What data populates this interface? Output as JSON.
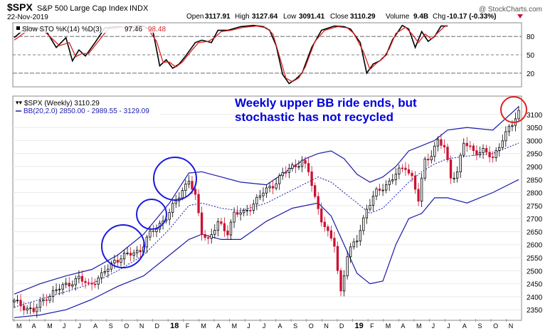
{
  "header": {
    "symbol": "$SPX",
    "name": "S&P 500 Large Cap Index",
    "exchange": "INDX",
    "date": "22-Nov-2019",
    "open_label": "Open",
    "open": "3117.91",
    "high_label": "High",
    "high": "3127.64",
    "low_label": "Low",
    "low": "3091.41",
    "close_label": "Close",
    "close": "3110.29",
    "volume_label": "Volume",
    "volume": "9.4B",
    "chg_label": "Chg",
    "chg": "-10.17 (-0.33%)",
    "watermark": "@ StockCharts.com"
  },
  "stoch_panel": {
    "legend_name": "Slow STO %K(14) %D(3)",
    "k_value": "97.46",
    "d_value": "98.48",
    "ticks": [
      20,
      50,
      80
    ],
    "ylim": [
      0,
      100
    ]
  },
  "price_panel": {
    "legend_price": "$SPX (Weekly) 3110.29",
    "legend_bb": "BB(20,2.0) 2850.00 - 2989.55 - 3129.09",
    "ticks": [
      2350,
      2400,
      2450,
      2500,
      2550,
      2600,
      2650,
      2700,
      2750,
      2800,
      2850,
      2900,
      2950,
      3000,
      3050,
      3100
    ],
    "ylim": [
      2315,
      3165
    ]
  },
  "annotation": {
    "line1": "Weekly upper BB ride ends, but",
    "line2": "stochastic has not recycled"
  },
  "x_labels": [
    "M",
    "A",
    "M",
    "J",
    "J",
    "A",
    "S",
    "O",
    "N",
    "D",
    "18",
    "F",
    "M",
    "A",
    "M",
    "J",
    "J",
    "A",
    "S",
    "O",
    "N",
    "D",
    "19",
    "F",
    "M",
    "A",
    "M",
    "J",
    "J",
    "A",
    "S",
    "O",
    "N"
  ],
  "colors": {
    "up": "#000000",
    "down": "#cc1133",
    "k_line": "#000000",
    "d_line": "#dd2222",
    "bb_band": "#1a1aaa",
    "bb_mid": "#1a1aaa",
    "annotation": "#0000dd",
    "circle_blue": "#1a1add",
    "circle_red": "#dd2222"
  },
  "chart_data": [
    {
      "type": "line",
      "x_unit": "week index (0 = first week of Mar 2017)",
      "series": [
        {
          "name": "%K(14)",
          "points": [
            [
              0,
              78
            ],
            [
              4,
              96
            ],
            [
              8,
              92
            ],
            [
              10,
              88
            ],
            [
              13,
              62
            ],
            [
              16,
              78
            ],
            [
              18,
              40
            ],
            [
              20,
              58
            ],
            [
              22,
              48
            ],
            [
              25,
              70
            ],
            [
              28,
              94
            ],
            [
              32,
              96
            ],
            [
              36,
              94
            ],
            [
              38,
              98
            ],
            [
              40,
              97
            ],
            [
              43,
              86
            ],
            [
              45,
              32
            ],
            [
              47,
              42
            ],
            [
              49,
              28
            ],
            [
              51,
              35
            ],
            [
              53,
              48
            ],
            [
              56,
              70
            ],
            [
              58,
              74
            ],
            [
              61,
              70
            ],
            [
              63,
              90
            ],
            [
              66,
              90
            ],
            [
              70,
              96
            ],
            [
              74,
              98
            ],
            [
              77,
              96
            ],
            [
              79,
              90
            ],
            [
              81,
              65
            ],
            [
              83,
              18
            ],
            [
              85,
              3
            ],
            [
              87,
              10
            ],
            [
              89,
              20
            ],
            [
              92,
              62
            ],
            [
              95,
              90
            ],
            [
              99,
              97
            ],
            [
              102,
              96
            ],
            [
              104,
              92
            ],
            [
              107,
              70
            ],
            [
              109,
              20
            ],
            [
              111,
              35
            ],
            [
              113,
              40
            ],
            [
              115,
              50
            ],
            [
              117,
              75
            ],
            [
              120,
              98
            ],
            [
              122,
              92
            ],
            [
              124,
              62
            ],
            [
              126,
              88
            ],
            [
              128,
              72
            ],
            [
              130,
              80
            ],
            [
              132,
              97
            ],
            [
              134,
              97
            ]
          ]
        },
        {
          "name": "%D(3)",
          "points": [
            [
              0,
              74
            ],
            [
              5,
              93
            ],
            [
              9,
              90
            ],
            [
              12,
              75
            ],
            [
              14,
              65
            ],
            [
              17,
              70
            ],
            [
              19,
              47
            ],
            [
              21,
              52
            ],
            [
              23,
              52
            ],
            [
              26,
              72
            ],
            [
              29,
              92
            ],
            [
              33,
              95
            ],
            [
              37,
              95
            ],
            [
              39,
              97
            ],
            [
              41,
              95
            ],
            [
              44,
              72
            ],
            [
              46,
              38
            ],
            [
              48,
              38
            ],
            [
              50,
              30
            ],
            [
              52,
              38
            ],
            [
              55,
              58
            ],
            [
              57,
              70
            ],
            [
              60,
              72
            ],
            [
              62,
              78
            ],
            [
              64,
              88
            ],
            [
              67,
              90
            ],
            [
              71,
              95
            ],
            [
              75,
              97
            ],
            [
              78,
              94
            ],
            [
              80,
              84
            ],
            [
              82,
              48
            ],
            [
              84,
              12
            ],
            [
              86,
              6
            ],
            [
              88,
              12
            ],
            [
              90,
              30
            ],
            [
              93,
              72
            ],
            [
              96,
              90
            ],
            [
              100,
              96
            ],
            [
              103,
              94
            ],
            [
              105,
              85
            ],
            [
              108,
              55
            ],
            [
              110,
              26
            ],
            [
              112,
              36
            ],
            [
              114,
              44
            ],
            [
              116,
              60
            ],
            [
              118,
              85
            ],
            [
              121,
              95
            ],
            [
              123,
              84
            ],
            [
              125,
              70
            ],
            [
              127,
              84
            ],
            [
              129,
              76
            ],
            [
              131,
              86
            ],
            [
              133,
              96
            ],
            [
              134,
              98
            ]
          ]
        }
      ]
    },
    {
      "type": "candlestick",
      "x_unit": "week index (0 = first week of Mar 2017)",
      "close_path": [
        [
          0,
          2380
        ],
        [
          6,
          2345
        ],
        [
          10,
          2400
        ],
        [
          15,
          2440
        ],
        [
          20,
          2470
        ],
        [
          23,
          2445
        ],
        [
          27,
          2480
        ],
        [
          31,
          2540
        ],
        [
          35,
          2560
        ],
        [
          39,
          2580
        ],
        [
          42,
          2640
        ],
        [
          45,
          2680
        ],
        [
          48,
          2720
        ],
        [
          51,
          2790
        ],
        [
          54,
          2850
        ],
        [
          56,
          2780
        ],
        [
          58,
          2650
        ],
        [
          60,
          2620
        ],
        [
          63,
          2680
        ],
        [
          66,
          2650
        ],
        [
          68,
          2720
        ],
        [
          71,
          2720
        ],
        [
          74,
          2760
        ],
        [
          77,
          2800
        ],
        [
          80,
          2830
        ],
        [
          83,
          2870
        ],
        [
          86,
          2900
        ],
        [
          89,
          2920
        ],
        [
          91,
          2880
        ],
        [
          93,
          2780
        ],
        [
          95,
          2700
        ],
        [
          97,
          2640
        ],
        [
          99,
          2600
        ],
        [
          100,
          2500
        ],
        [
          101,
          2420
        ],
        [
          103,
          2560
        ],
        [
          106,
          2620
        ],
        [
          109,
          2740
        ],
        [
          112,
          2800
        ],
        [
          115,
          2830
        ],
        [
          118,
          2870
        ],
        [
          121,
          2900
        ],
        [
          123,
          2860
        ],
        [
          125,
          2770
        ],
        [
          127,
          2920
        ],
        [
          129,
          2950
        ],
        [
          131,
          3000
        ],
        [
          133,
          2970
        ],
        [
          135,
          2860
        ],
        [
          137,
          2880
        ],
        [
          139,
          2990
        ],
        [
          142,
          2960
        ],
        [
          145,
          2960
        ],
        [
          148,
          2930
        ],
        [
          151,
          3010
        ],
        [
          154,
          3060
        ],
        [
          156,
          3110
        ]
      ],
      "bollinger": {
        "upper": [
          [
            0,
            2410
          ],
          [
            8,
            2450
          ],
          [
            16,
            2480
          ],
          [
            24,
            2505
          ],
          [
            32,
            2560
          ],
          [
            40,
            2640
          ],
          [
            48,
            2760
          ],
          [
            54,
            2875
          ],
          [
            58,
            2880
          ],
          [
            64,
            2860
          ],
          [
            70,
            2840
          ],
          [
            78,
            2830
          ],
          [
            84,
            2880
          ],
          [
            90,
            2930
          ],
          [
            94,
            2950
          ],
          [
            98,
            2960
          ],
          [
            102,
            2930
          ],
          [
            106,
            2870
          ],
          [
            110,
            2840
          ],
          [
            114,
            2860
          ],
          [
            118,
            2900
          ],
          [
            122,
            2960
          ],
          [
            126,
            2980
          ],
          [
            130,
            3000
          ],
          [
            134,
            3040
          ],
          [
            140,
            3050
          ],
          [
            148,
            3040
          ],
          [
            156,
            3130
          ]
        ],
        "middle": [
          [
            0,
            2360
          ],
          [
            8,
            2390
          ],
          [
            16,
            2420
          ],
          [
            24,
            2450
          ],
          [
            32,
            2500
          ],
          [
            40,
            2560
          ],
          [
            48,
            2660
          ],
          [
            54,
            2750
          ],
          [
            58,
            2760
          ],
          [
            64,
            2740
          ],
          [
            70,
            2730
          ],
          [
            78,
            2760
          ],
          [
            86,
            2810
          ],
          [
            94,
            2860
          ],
          [
            98,
            2840
          ],
          [
            102,
            2800
          ],
          [
            106,
            2760
          ],
          [
            110,
            2720
          ],
          [
            114,
            2740
          ],
          [
            118,
            2790
          ],
          [
            122,
            2840
          ],
          [
            126,
            2880
          ],
          [
            130,
            2910
          ],
          [
            134,
            2930
          ],
          [
            140,
            2940
          ],
          [
            148,
            2950
          ],
          [
            156,
            2990
          ]
        ],
        "lower": [
          [
            0,
            2320
          ],
          [
            8,
            2330
          ],
          [
            16,
            2350
          ],
          [
            24,
            2390
          ],
          [
            32,
            2440
          ],
          [
            40,
            2480
          ],
          [
            48,
            2560
          ],
          [
            54,
            2620
          ],
          [
            58,
            2640
          ],
          [
            64,
            2620
          ],
          [
            70,
            2620
          ],
          [
            78,
            2690
          ],
          [
            86,
            2740
          ],
          [
            94,
            2760
          ],
          [
            98,
            2710
          ],
          [
            102,
            2600
          ],
          [
            106,
            2490
          ],
          [
            110,
            2450
          ],
          [
            114,
            2460
          ],
          [
            118,
            2600
          ],
          [
            122,
            2700
          ],
          [
            126,
            2720
          ],
          [
            130,
            2780
          ],
          [
            134,
            2780
          ],
          [
            140,
            2760
          ],
          [
            148,
            2800
          ],
          [
            156,
            2850
          ]
        ]
      },
      "ylim": [
        2315,
        3165
      ]
    }
  ]
}
